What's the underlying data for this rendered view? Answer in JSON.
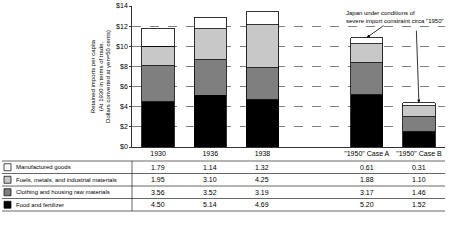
{
  "chart_data": {
    "type": "bar",
    "stacked": true,
    "y_label": [
      "Retained imports per capita",
      "(At 1930 in terms of trade.",
      "Dollars converted at yen=50 cents)"
    ],
    "annotations": [
      "Japan under conditions of",
      "severe import constraint circa \"1950\""
    ],
    "categories": [
      "1930",
      "1936",
      "1938",
      null,
      "\"1950\" Case A",
      "\"1950\" Case B"
    ],
    "series": [
      {
        "name": "Food and fertilizer",
        "color": "#000000",
        "values": [
          4.5,
          5.14,
          4.69,
          null,
          5.2,
          1.52
        ],
        "value_labels": [
          "4.50",
          "5.14",
          "4.69",
          null,
          "5.20",
          "1.52"
        ]
      },
      {
        "name": "Clothing and housing raw materials",
        "color": "#7f7f7f",
        "values": [
          3.56,
          3.52,
          3.19,
          null,
          3.17,
          1.46
        ],
        "value_labels": [
          "3.56",
          "3.52",
          "3.19",
          null,
          "3.17",
          "1.46"
        ]
      },
      {
        "name": "Fuels, metals, and industrial materials",
        "color": "#c8c8c8",
        "values": [
          1.95,
          3.1,
          4.25,
          null,
          1.88,
          1.1
        ],
        "value_labels": [
          "1.95",
          "3.10",
          "4.25",
          null,
          "1.88",
          "1.10"
        ]
      },
      {
        "name": "Manufactured goods",
        "color": "#ffffff",
        "values": [
          1.79,
          1.14,
          1.32,
          null,
          0.61,
          0.31
        ],
        "value_labels": [
          "1.79",
          "1.14",
          "1.32",
          null,
          "0.61",
          "0.31"
        ]
      }
    ],
    "data_labels": true,
    "ylim": [
      0,
      14
    ],
    "yticks": [
      {
        "value": 0,
        "label": "$0"
      },
      {
        "value": 2,
        "label": "$2"
      },
      {
        "value": 4,
        "label": "$4"
      },
      {
        "value": 6,
        "label": "$6"
      },
      {
        "value": 8,
        "label": "$8"
      },
      {
        "value": 10,
        "label": "$10"
      },
      {
        "value": 12,
        "label": "$12"
      },
      {
        "value": 14,
        "label": "$14"
      }
    ],
    "grid": true
  }
}
